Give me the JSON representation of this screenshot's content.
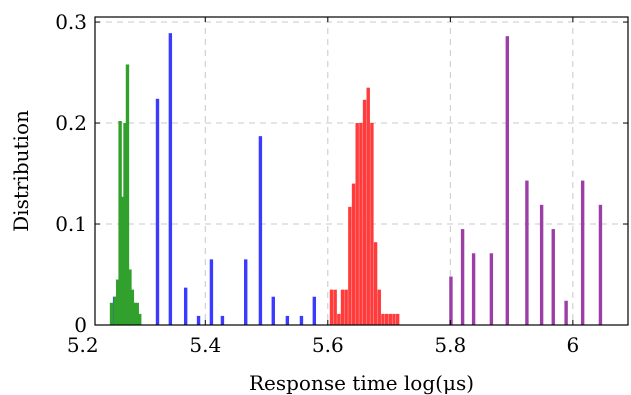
{
  "chart_data": {
    "type": "bar",
    "title": "",
    "xlabel": "Response time log(μs)",
    "ylabel": "Distribution",
    "xlim": [
      5.22,
      6.09
    ],
    "ylim": [
      0,
      0.305
    ],
    "x_ticks": [
      5.2,
      5.4,
      5.6,
      5.8,
      6.0
    ],
    "x_tick_labels": [
      "5.2",
      "5.4",
      "5.6",
      "5.8",
      "6"
    ],
    "y_ticks": [
      0,
      0.1,
      0.2,
      0.3
    ],
    "y_tick_labels": [
      "0",
      "0.1",
      "0.2",
      "0.3"
    ],
    "grid": true,
    "series": [
      {
        "color": "#3b3bff",
        "points": [
          {
            "x": 5.252,
            "y": 0.028
          },
          {
            "x": 5.322,
            "y": 0.224
          },
          {
            "x": 5.343,
            "y": 0.289
          },
          {
            "x": 5.368,
            "y": 0.037
          },
          {
            "x": 5.389,
            "y": 0.009
          },
          {
            "x": 5.41,
            "y": 0.065
          },
          {
            "x": 5.428,
            "y": 0.009
          },
          {
            "x": 5.466,
            "y": 0.065
          },
          {
            "x": 5.49,
            "y": 0.187
          },
          {
            "x": 5.511,
            "y": 0.028
          },
          {
            "x": 5.534,
            "y": 0.009
          },
          {
            "x": 5.557,
            "y": 0.009
          },
          {
            "x": 5.578,
            "y": 0.028
          }
        ]
      },
      {
        "color": "#32a02c",
        "points": [
          {
            "x": 5.247,
            "y": 0.022
          },
          {
            "x": 5.253,
            "y": 0.028
          },
          {
            "x": 5.257,
            "y": 0.045
          },
          {
            "x": 5.261,
            "y": 0.202
          },
          {
            "x": 5.265,
            "y": 0.127
          },
          {
            "x": 5.269,
            "y": 0.2
          },
          {
            "x": 5.273,
            "y": 0.258
          },
          {
            "x": 5.277,
            "y": 0.055
          },
          {
            "x": 5.281,
            "y": 0.035
          },
          {
            "x": 5.285,
            "y": 0.022
          },
          {
            "x": 5.289,
            "y": 0.022
          },
          {
            "x": 5.293,
            "y": 0.011
          }
        ]
      },
      {
        "color": "#ff3b3b",
        "points": [
          {
            "x": 5.606,
            "y": 0.035
          },
          {
            "x": 5.612,
            "y": 0.035
          },
          {
            "x": 5.618,
            "y": 0.011
          },
          {
            "x": 5.624,
            "y": 0.035
          },
          {
            "x": 5.63,
            "y": 0.035
          },
          {
            "x": 5.636,
            "y": 0.117
          },
          {
            "x": 5.642,
            "y": 0.14
          },
          {
            "x": 5.648,
            "y": 0.2
          },
          {
            "x": 5.654,
            "y": 0.2
          },
          {
            "x": 5.66,
            "y": 0.223
          },
          {
            "x": 5.666,
            "y": 0.235
          },
          {
            "x": 5.672,
            "y": 0.2
          },
          {
            "x": 5.678,
            "y": 0.082
          },
          {
            "x": 5.684,
            "y": 0.035
          },
          {
            "x": 5.69,
            "y": 0.011
          },
          {
            "x": 5.696,
            "y": 0.011
          },
          {
            "x": 5.702,
            "y": 0.011
          },
          {
            "x": 5.708,
            "y": 0.011
          },
          {
            "x": 5.714,
            "y": 0.011
          }
        ]
      },
      {
        "color": "#9b3fa6",
        "points": [
          {
            "x": 5.801,
            "y": 0.048
          },
          {
            "x": 5.82,
            "y": 0.095
          },
          {
            "x": 5.838,
            "y": 0.071
          },
          {
            "x": 5.867,
            "y": 0.071
          },
          {
            "x": 5.893,
            "y": 0.286
          },
          {
            "x": 5.925,
            "y": 0.143
          },
          {
            "x": 5.949,
            "y": 0.119
          },
          {
            "x": 5.968,
            "y": 0.095
          },
          {
            "x": 5.989,
            "y": 0.024
          },
          {
            "x": 6.016,
            "y": 0.143
          },
          {
            "x": 6.045,
            "y": 0.119
          }
        ]
      }
    ]
  }
}
